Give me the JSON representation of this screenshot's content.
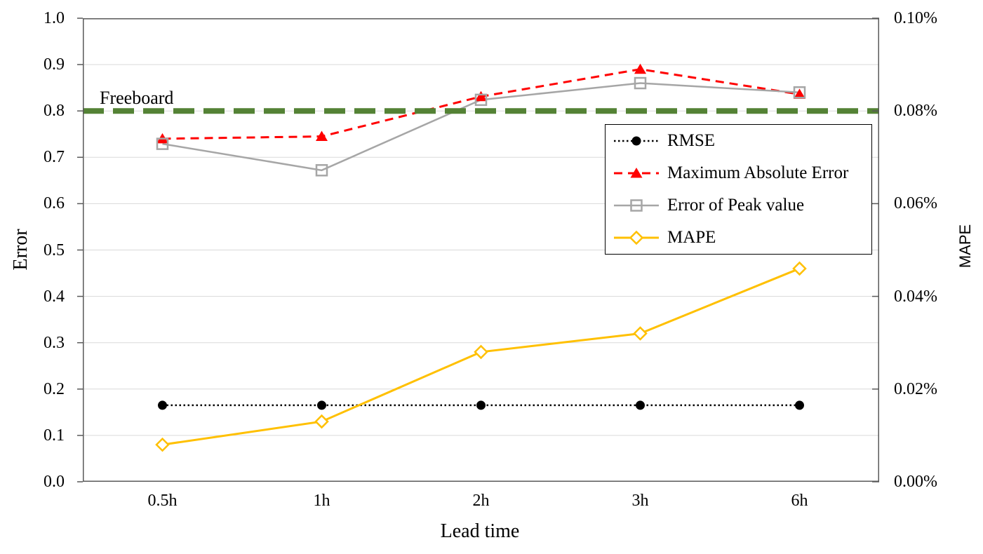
{
  "figure": {
    "background": "#FFFFFF"
  },
  "chart_data": {
    "type": "line",
    "title": "",
    "categories": [
      "0.5h",
      "1h",
      "2h",
      "3h",
      "6h"
    ],
    "x_axis": {
      "label": "Lead time"
    },
    "y_left": {
      "label": "Error",
      "min": 0.0,
      "max": 1.0,
      "tick_step": 0.1,
      "tick_labels": [
        "1.0",
        "0.9",
        "0.8",
        "0.7",
        "0.6",
        "0.5",
        "0.4",
        "0.3",
        "0.2",
        "0.1",
        "0.0"
      ]
    },
    "y_right": {
      "label": "MAPE",
      "min": 0.0,
      "max": 0.1,
      "tick_step": 0.02,
      "unit": "%",
      "tick_labels": [
        "0.10%",
        "0.08%",
        "0.06%",
        "0.04%",
        "0.02%",
        "0.00%"
      ]
    },
    "series": [
      {
        "name": "RMSE",
        "axis": "left",
        "color": "#000000",
        "line_style": "dotted",
        "line_width": 2.5,
        "marker": "circle-filled",
        "values": [
          0.165,
          0.165,
          0.165,
          0.165,
          0.165
        ]
      },
      {
        "name": "Maximum Absolute Error",
        "axis": "left",
        "color": "#FF0000",
        "line_style": "dashed",
        "line_width": 3,
        "marker": "triangle-filled",
        "values": [
          0.74,
          0.745,
          0.831,
          0.89,
          0.836
        ]
      },
      {
        "name": "Error of Peak value",
        "axis": "left",
        "color": "#A6A6A6",
        "line_style": "solid",
        "line_width": 2.5,
        "marker": "square-open",
        "values": [
          0.729,
          0.672,
          0.824,
          0.86,
          0.84
        ]
      },
      {
        "name": "MAPE",
        "axis": "right",
        "color": "#FFC000",
        "line_style": "solid",
        "line_width": 3,
        "marker": "diamond-open",
        "values": [
          0.008,
          0.013,
          0.028,
          0.032,
          0.046
        ]
      }
    ],
    "reference_line": {
      "label": "Freeboard",
      "axis": "left",
      "value": 0.8,
      "color": "#548235",
      "line_style": "dashed",
      "line_width": 8
    },
    "grid": {
      "show_horizontal": true,
      "show_vertical": false,
      "color": "#D9D9D9"
    },
    "axis_color": "#595959",
    "legend": {
      "position": "middle-right",
      "border_color": "#000000"
    }
  }
}
